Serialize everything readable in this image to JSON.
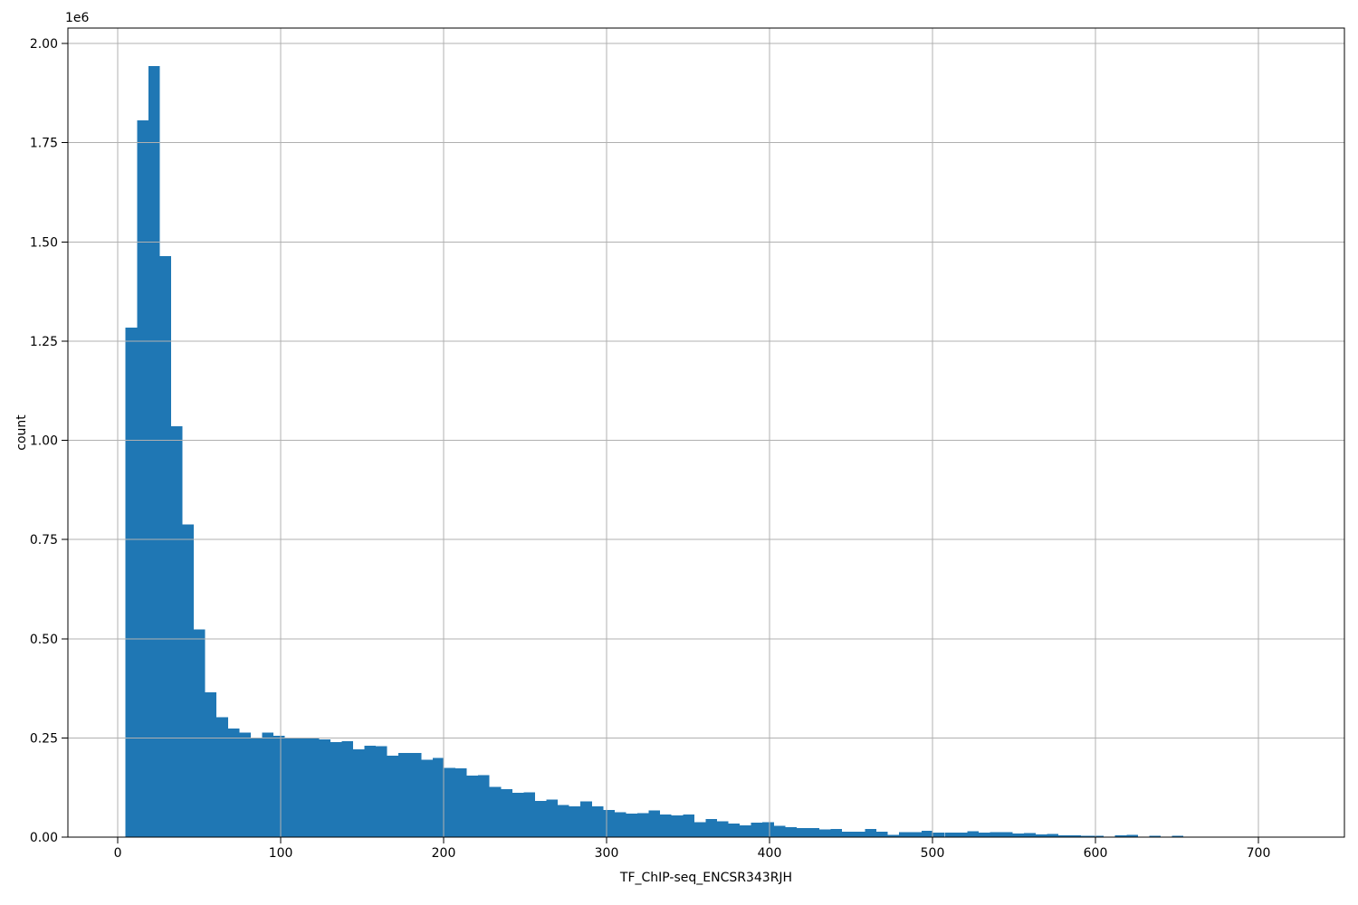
{
  "figure": {
    "background": "#ffffff"
  },
  "chart_data": {
    "type": "bar",
    "title": "",
    "xlabel": "TF_ChIP-seq_ENCSR343RJH",
    "ylabel": "count",
    "y_scale_factor": "1e6",
    "legend": null,
    "grid": true,
    "grid_above_bars": true,
    "bar_color": "#1f77b4",
    "grid_color": "#b0b0b0",
    "spine_color": "#000000",
    "text_color": "#000000",
    "xlim": [
      -30.6,
      752.8
    ],
    "ylim": [
      0,
      2.039
    ],
    "x_ticks": [
      0,
      100,
      200,
      300,
      400,
      500,
      600,
      700
    ],
    "x_tick_labels": [
      "0",
      "100",
      "200",
      "300",
      "400",
      "500",
      "600",
      "700"
    ],
    "y_ticks": [
      0,
      0.25,
      0.5,
      0.75,
      1.0,
      1.25,
      1.5,
      1.75,
      2.0
    ],
    "y_tick_labels": [
      "0.00",
      "0.25",
      "0.50",
      "0.75",
      "1.00",
      "1.25",
      "1.50",
      "1.75",
      "2.00"
    ],
    "bin_start": 4.8,
    "bin_width": 6.98,
    "counts_e6": [
      1.284,
      1.806,
      1.943,
      1.464,
      1.035,
      0.788,
      0.523,
      0.365,
      0.302,
      0.274,
      0.264,
      0.249,
      0.264,
      0.256,
      0.251,
      0.251,
      0.249,
      0.246,
      0.24,
      0.242,
      0.221,
      0.23,
      0.229,
      0.205,
      0.212,
      0.212,
      0.195,
      0.2,
      0.175,
      0.173,
      0.155,
      0.156,
      0.127,
      0.121,
      0.112,
      0.113,
      0.091,
      0.095,
      0.081,
      0.078,
      0.09,
      0.078,
      0.068,
      0.063,
      0.059,
      0.06,
      0.067,
      0.057,
      0.055,
      0.057,
      0.038,
      0.046,
      0.04,
      0.034,
      0.03,
      0.036,
      0.038,
      0.028,
      0.025,
      0.023,
      0.023,
      0.019,
      0.0205,
      0.014,
      0.014,
      0.0205,
      0.014,
      0.006,
      0.012,
      0.012,
      0.016,
      0.011,
      0.011,
      0.011,
      0.015,
      0.011,
      0.013,
      0.013,
      0.009,
      0.0107,
      0.007,
      0.0076,
      0.0046,
      0.0046,
      0.003,
      0.0035,
      0.001,
      0.005,
      0.006,
      0.001,
      0.004,
      0.0008,
      0.0035
    ]
  }
}
